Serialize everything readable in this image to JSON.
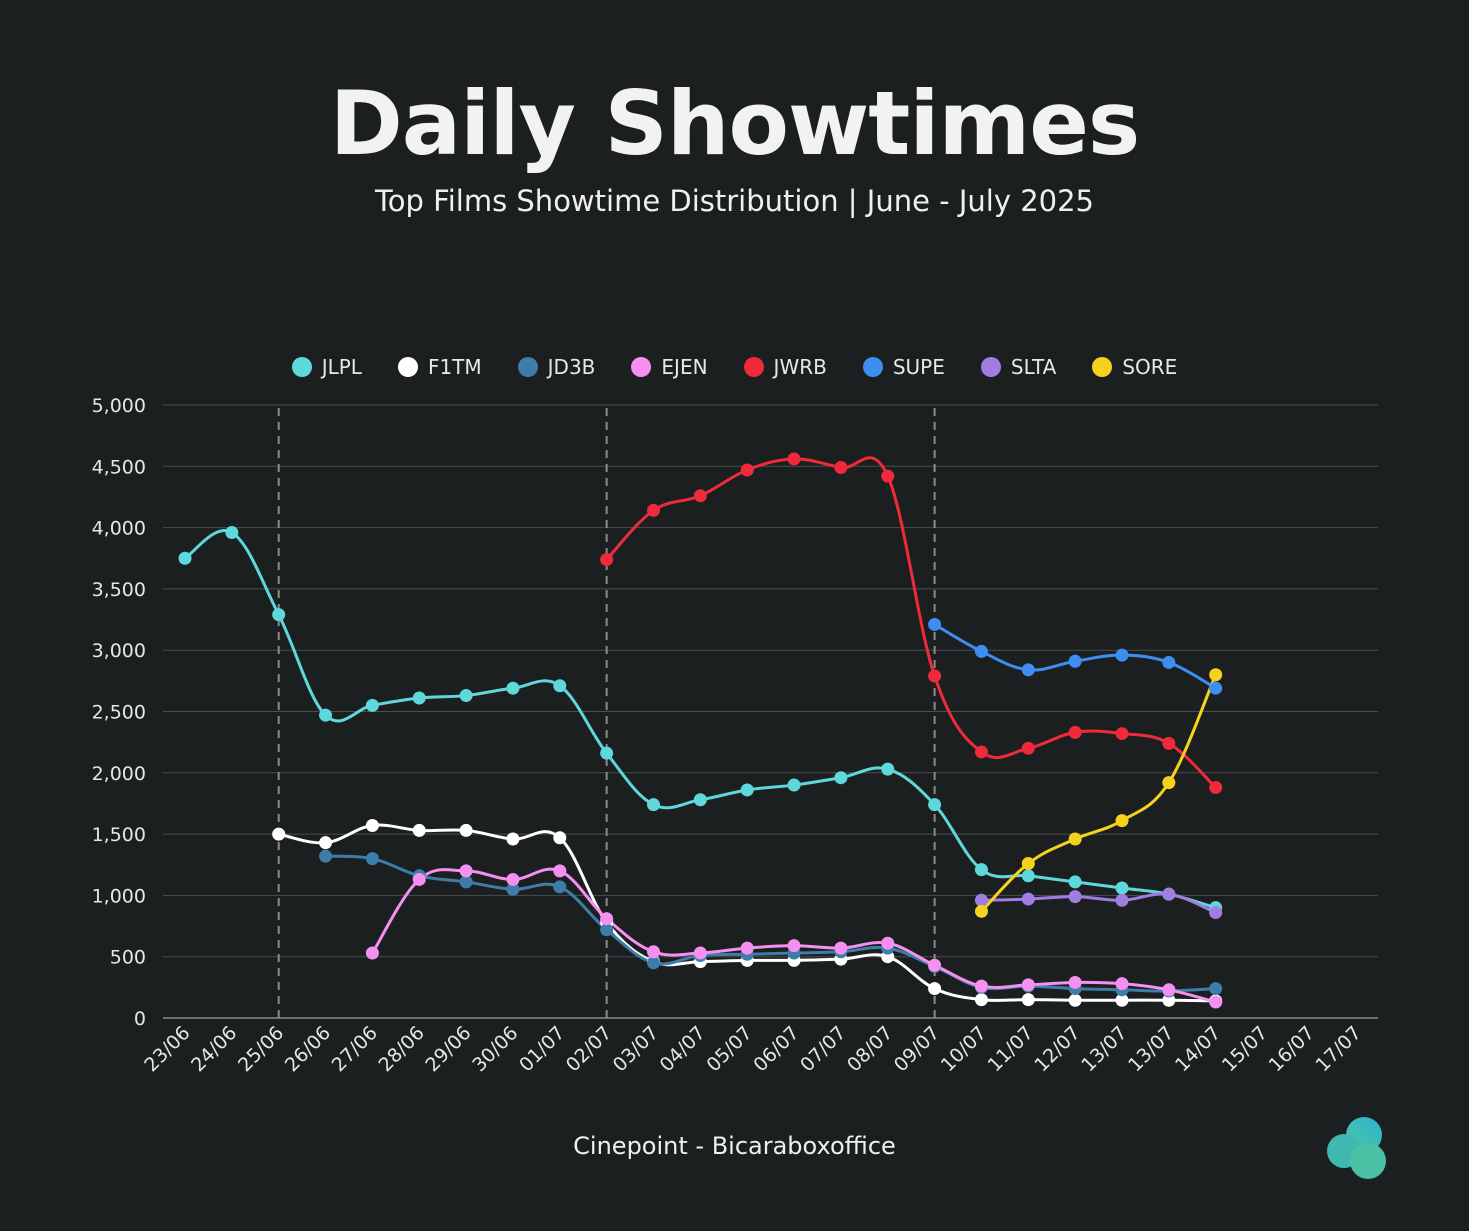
{
  "title": "Daily Showtimes",
  "subtitle": "Top Films Showtime Distribution | June - July 2025",
  "source": "Cinepoint - Bicaraboxoffice",
  "chart_data": {
    "type": "line",
    "categories": [
      "23/06",
      "24/06",
      "25/06",
      "26/06",
      "27/06",
      "28/06",
      "29/06",
      "30/06",
      "01/07",
      "02/07",
      "03/07",
      "04/07",
      "05/07",
      "06/07",
      "07/07",
      "08/07",
      "09/07",
      "10/07",
      "11/07",
      "12/07",
      "13/07",
      "13/07",
      "14/07",
      "15/07",
      "16/07",
      "17/07"
    ],
    "ylim": [
      0,
      5000
    ],
    "yticks": [
      0,
      500,
      1000,
      1500,
      2000,
      2500,
      3000,
      3500,
      4000,
      4500,
      5000
    ],
    "ytick_labels": [
      "0",
      "500",
      "1,000",
      "1,500",
      "2,000",
      "2,500",
      "3,000",
      "3,500",
      "4,000",
      "4,500",
      "5,000"
    ],
    "grid": "horizontal",
    "legend_position": "top",
    "vertical_markers": [
      "25/06",
      "02/07",
      "09/07"
    ],
    "series": [
      {
        "name": "JLPL",
        "color": "#5fd8dc",
        "values": [
          3750,
          3960,
          3290,
          2470,
          2550,
          2610,
          2630,
          2690,
          2710,
          2160,
          1740,
          1780,
          1860,
          1900,
          1960,
          2030,
          1740,
          1210,
          1160,
          1110,
          1060,
          1010,
          900,
          null,
          null,
          null
        ]
      },
      {
        "name": "F1TM",
        "color": "#ffffff",
        "values": [
          null,
          null,
          1500,
          1430,
          1570,
          1530,
          1530,
          1460,
          1470,
          780,
          460,
          460,
          470,
          470,
          480,
          500,
          240,
          150,
          150,
          145,
          145,
          145,
          140,
          null,
          null,
          null
        ]
      },
      {
        "name": "JD3B",
        "color": "#3d7ea8",
        "values": [
          null,
          null,
          null,
          1320,
          1300,
          1160,
          1110,
          1050,
          1070,
          720,
          450,
          510,
          520,
          530,
          540,
          570,
          420,
          250,
          260,
          240,
          230,
          220,
          240,
          null,
          null,
          null
        ]
      },
      {
        "name": "EJEN",
        "color": "#f58ff0",
        "values": [
          null,
          null,
          null,
          null,
          530,
          1130,
          1200,
          1130,
          1200,
          810,
          540,
          530,
          570,
          590,
          570,
          610,
          430,
          260,
          270,
          290,
          280,
          230,
          130,
          null,
          null,
          null
        ]
      },
      {
        "name": "JWRB",
        "color": "#ee2a3b",
        "values": [
          null,
          null,
          null,
          null,
          null,
          null,
          null,
          null,
          null,
          3740,
          4140,
          4260,
          4470,
          4560,
          4490,
          4420,
          2790,
          2170,
          2200,
          2330,
          2320,
          2240,
          1880,
          null,
          null,
          null
        ]
      },
      {
        "name": "SUPE",
        "color": "#3d8ef0",
        "values": [
          null,
          null,
          null,
          null,
          null,
          null,
          null,
          null,
          null,
          null,
          null,
          null,
          null,
          null,
          null,
          null,
          3210,
          2990,
          2840,
          2910,
          2960,
          2900,
          2690,
          null,
          null,
          null
        ]
      },
      {
        "name": "SLTA",
        "color": "#a07de0",
        "values": [
          null,
          null,
          null,
          null,
          null,
          null,
          null,
          null,
          null,
          null,
          null,
          null,
          null,
          null,
          null,
          null,
          null,
          960,
          970,
          990,
          960,
          1010,
          860,
          null,
          null,
          null
        ]
      },
      {
        "name": "SORE",
        "color": "#f6d21f",
        "values": [
          null,
          null,
          null,
          null,
          null,
          null,
          null,
          null,
          null,
          null,
          null,
          null,
          null,
          null,
          null,
          null,
          null,
          870,
          1260,
          1460,
          1610,
          1920,
          2800,
          null,
          null,
          null
        ]
      }
    ]
  }
}
